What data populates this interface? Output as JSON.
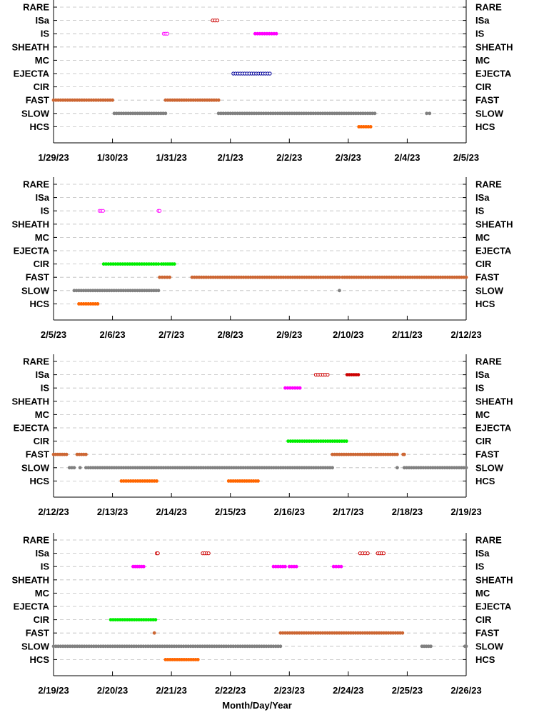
{
  "chart_data": {
    "type": "scatter",
    "categories": [
      "RARE",
      "ISa",
      "IS",
      "SHEATH",
      "MC",
      "EJECTA",
      "CIR",
      "FAST",
      "SLOW",
      "HCS"
    ],
    "xlabel": "Month/Day/Year",
    "ylabel": "",
    "grid": "dashed horizontal",
    "colors": {
      "ISa": "#cc0000",
      "IS": "#ff00ff",
      "EJECTA": "#000099",
      "CIR": "#00ee00",
      "FAST": "#cc6633",
      "SLOW": "#808080",
      "HCS": "#ff6600"
    },
    "panels": [
      {
        "xlim": [
          0,
          7
        ],
        "xticks": [
          "1/29/23",
          "1/30/23",
          "1/31/23",
          "2/1/23",
          "2/2/23",
          "2/3/23",
          "2/4/23",
          "2/5/23"
        ],
        "segments": [
          {
            "category": "ISa",
            "start": 2.7,
            "end": 2.78,
            "style": "open"
          },
          {
            "category": "IS",
            "start": 1.87,
            "end": 1.93,
            "style": "open"
          },
          {
            "category": "IS",
            "start": 3.42,
            "end": 3.78,
            "style": "filled"
          },
          {
            "category": "EJECTA",
            "start": 3.05,
            "end": 3.67,
            "style": "open"
          },
          {
            "category": "FAST",
            "start": 0.0,
            "end": 1.0,
            "style": "filled"
          },
          {
            "category": "FAST",
            "start": 1.9,
            "end": 2.8,
            "style": "filled"
          },
          {
            "category": "SLOW",
            "start": 1.03,
            "end": 1.9,
            "style": "filled"
          },
          {
            "category": "SLOW",
            "start": 2.8,
            "end": 5.45,
            "style": "filled"
          },
          {
            "category": "SLOW",
            "start": 6.33,
            "end": 6.38,
            "style": "filled"
          },
          {
            "category": "HCS",
            "start": 5.18,
            "end": 5.38,
            "style": "filled"
          }
        ]
      },
      {
        "xlim": [
          0,
          7
        ],
        "xticks": [
          "2/5/23",
          "2/6/23",
          "2/7/23",
          "2/8/23",
          "2/9/23",
          "2/10/23",
          "2/11/23",
          "2/12/23"
        ],
        "segments": [
          {
            "category": "IS",
            "start": 0.78,
            "end": 0.84,
            "style": "open"
          },
          {
            "category": "IS",
            "start": 1.78,
            "end": 1.8,
            "style": "open"
          },
          {
            "category": "CIR",
            "start": 0.85,
            "end": 1.78,
            "style": "filled"
          },
          {
            "category": "CIR",
            "start": 1.83,
            "end": 2.05,
            "style": "filled"
          },
          {
            "category": "FAST",
            "start": 1.8,
            "end": 1.97,
            "style": "filled"
          },
          {
            "category": "FAST",
            "start": 2.35,
            "end": 4.85,
            "style": "filled"
          },
          {
            "category": "FAST",
            "start": 4.9,
            "end": 7.0,
            "style": "filled"
          },
          {
            "category": "SLOW",
            "start": 0.35,
            "end": 1.78,
            "style": "filled"
          },
          {
            "category": "SLOW",
            "start": 4.85,
            "end": 4.85,
            "style": "filled"
          },
          {
            "category": "HCS",
            "start": 0.43,
            "end": 0.75,
            "style": "filled"
          }
        ]
      },
      {
        "xlim": [
          0,
          7
        ],
        "xticks": [
          "2/12/23",
          "2/13/23",
          "2/14/23",
          "2/15/23",
          "2/16/23",
          "2/17/23",
          "2/18/23",
          "2/19/23"
        ],
        "segments": [
          {
            "category": "ISa",
            "start": 4.45,
            "end": 4.65,
            "style": "open"
          },
          {
            "category": "ISa",
            "start": 4.98,
            "end": 5.17,
            "style": "filled"
          },
          {
            "category": "IS",
            "start": 3.93,
            "end": 4.18,
            "style": "filled"
          },
          {
            "category": "CIR",
            "start": 3.98,
            "end": 4.97,
            "style": "filled"
          },
          {
            "category": "FAST",
            "start": 0.0,
            "end": 0.22,
            "style": "filled"
          },
          {
            "category": "FAST",
            "start": 0.4,
            "end": 0.55,
            "style": "filled"
          },
          {
            "category": "FAST",
            "start": 4.73,
            "end": 5.83,
            "style": "filled"
          },
          {
            "category": "FAST",
            "start": 5.93,
            "end": 5.95,
            "style": "filled"
          },
          {
            "category": "SLOW",
            "start": 0.27,
            "end": 0.35,
            "style": "filled"
          },
          {
            "category": "SLOW",
            "start": 0.45,
            "end": 0.45,
            "style": "filled"
          },
          {
            "category": "SLOW",
            "start": 0.55,
            "end": 4.73,
            "style": "filled"
          },
          {
            "category": "SLOW",
            "start": 5.83,
            "end": 5.83,
            "style": "filled"
          },
          {
            "category": "SLOW",
            "start": 5.95,
            "end": 7.0,
            "style": "filled"
          },
          {
            "category": "HCS",
            "start": 1.15,
            "end": 1.75,
            "style": "filled"
          },
          {
            "category": "HCS",
            "start": 2.97,
            "end": 3.47,
            "style": "filled"
          }
        ]
      },
      {
        "xlim": [
          0,
          7
        ],
        "xticks": [
          "2/19/23",
          "2/20/23",
          "2/21/23",
          "2/22/23",
          "2/23/23",
          "2/24/23",
          "2/25/23",
          "2/26/23"
        ],
        "segments": [
          {
            "category": "ISa",
            "start": 1.75,
            "end": 1.77,
            "style": "open"
          },
          {
            "category": "ISa",
            "start": 2.53,
            "end": 2.63,
            "style": "open"
          },
          {
            "category": "ISa",
            "start": 5.2,
            "end": 5.33,
            "style": "open"
          },
          {
            "category": "ISa",
            "start": 5.5,
            "end": 5.6,
            "style": "open"
          },
          {
            "category": "IS",
            "start": 1.35,
            "end": 1.53,
            "style": "filled"
          },
          {
            "category": "IS",
            "start": 3.73,
            "end": 3.93,
            "style": "filled"
          },
          {
            "category": "IS",
            "start": 4.0,
            "end": 4.12,
            "style": "filled"
          },
          {
            "category": "IS",
            "start": 4.75,
            "end": 4.88,
            "style": "filled"
          },
          {
            "category": "CIR",
            "start": 0.97,
            "end": 1.73,
            "style": "filled"
          },
          {
            "category": "FAST",
            "start": 1.71,
            "end": 1.71,
            "style": "filled"
          },
          {
            "category": "FAST",
            "start": 3.85,
            "end": 5.92,
            "style": "filled"
          },
          {
            "category": "SLOW",
            "start": 0.0,
            "end": 3.85,
            "style": "filled"
          },
          {
            "category": "SLOW",
            "start": 6.25,
            "end": 6.4,
            "style": "filled"
          },
          {
            "category": "SLOW",
            "start": 6.98,
            "end": 7.0,
            "style": "filled"
          },
          {
            "category": "HCS",
            "start": 1.9,
            "end": 2.45,
            "style": "filled"
          }
        ]
      }
    ]
  }
}
